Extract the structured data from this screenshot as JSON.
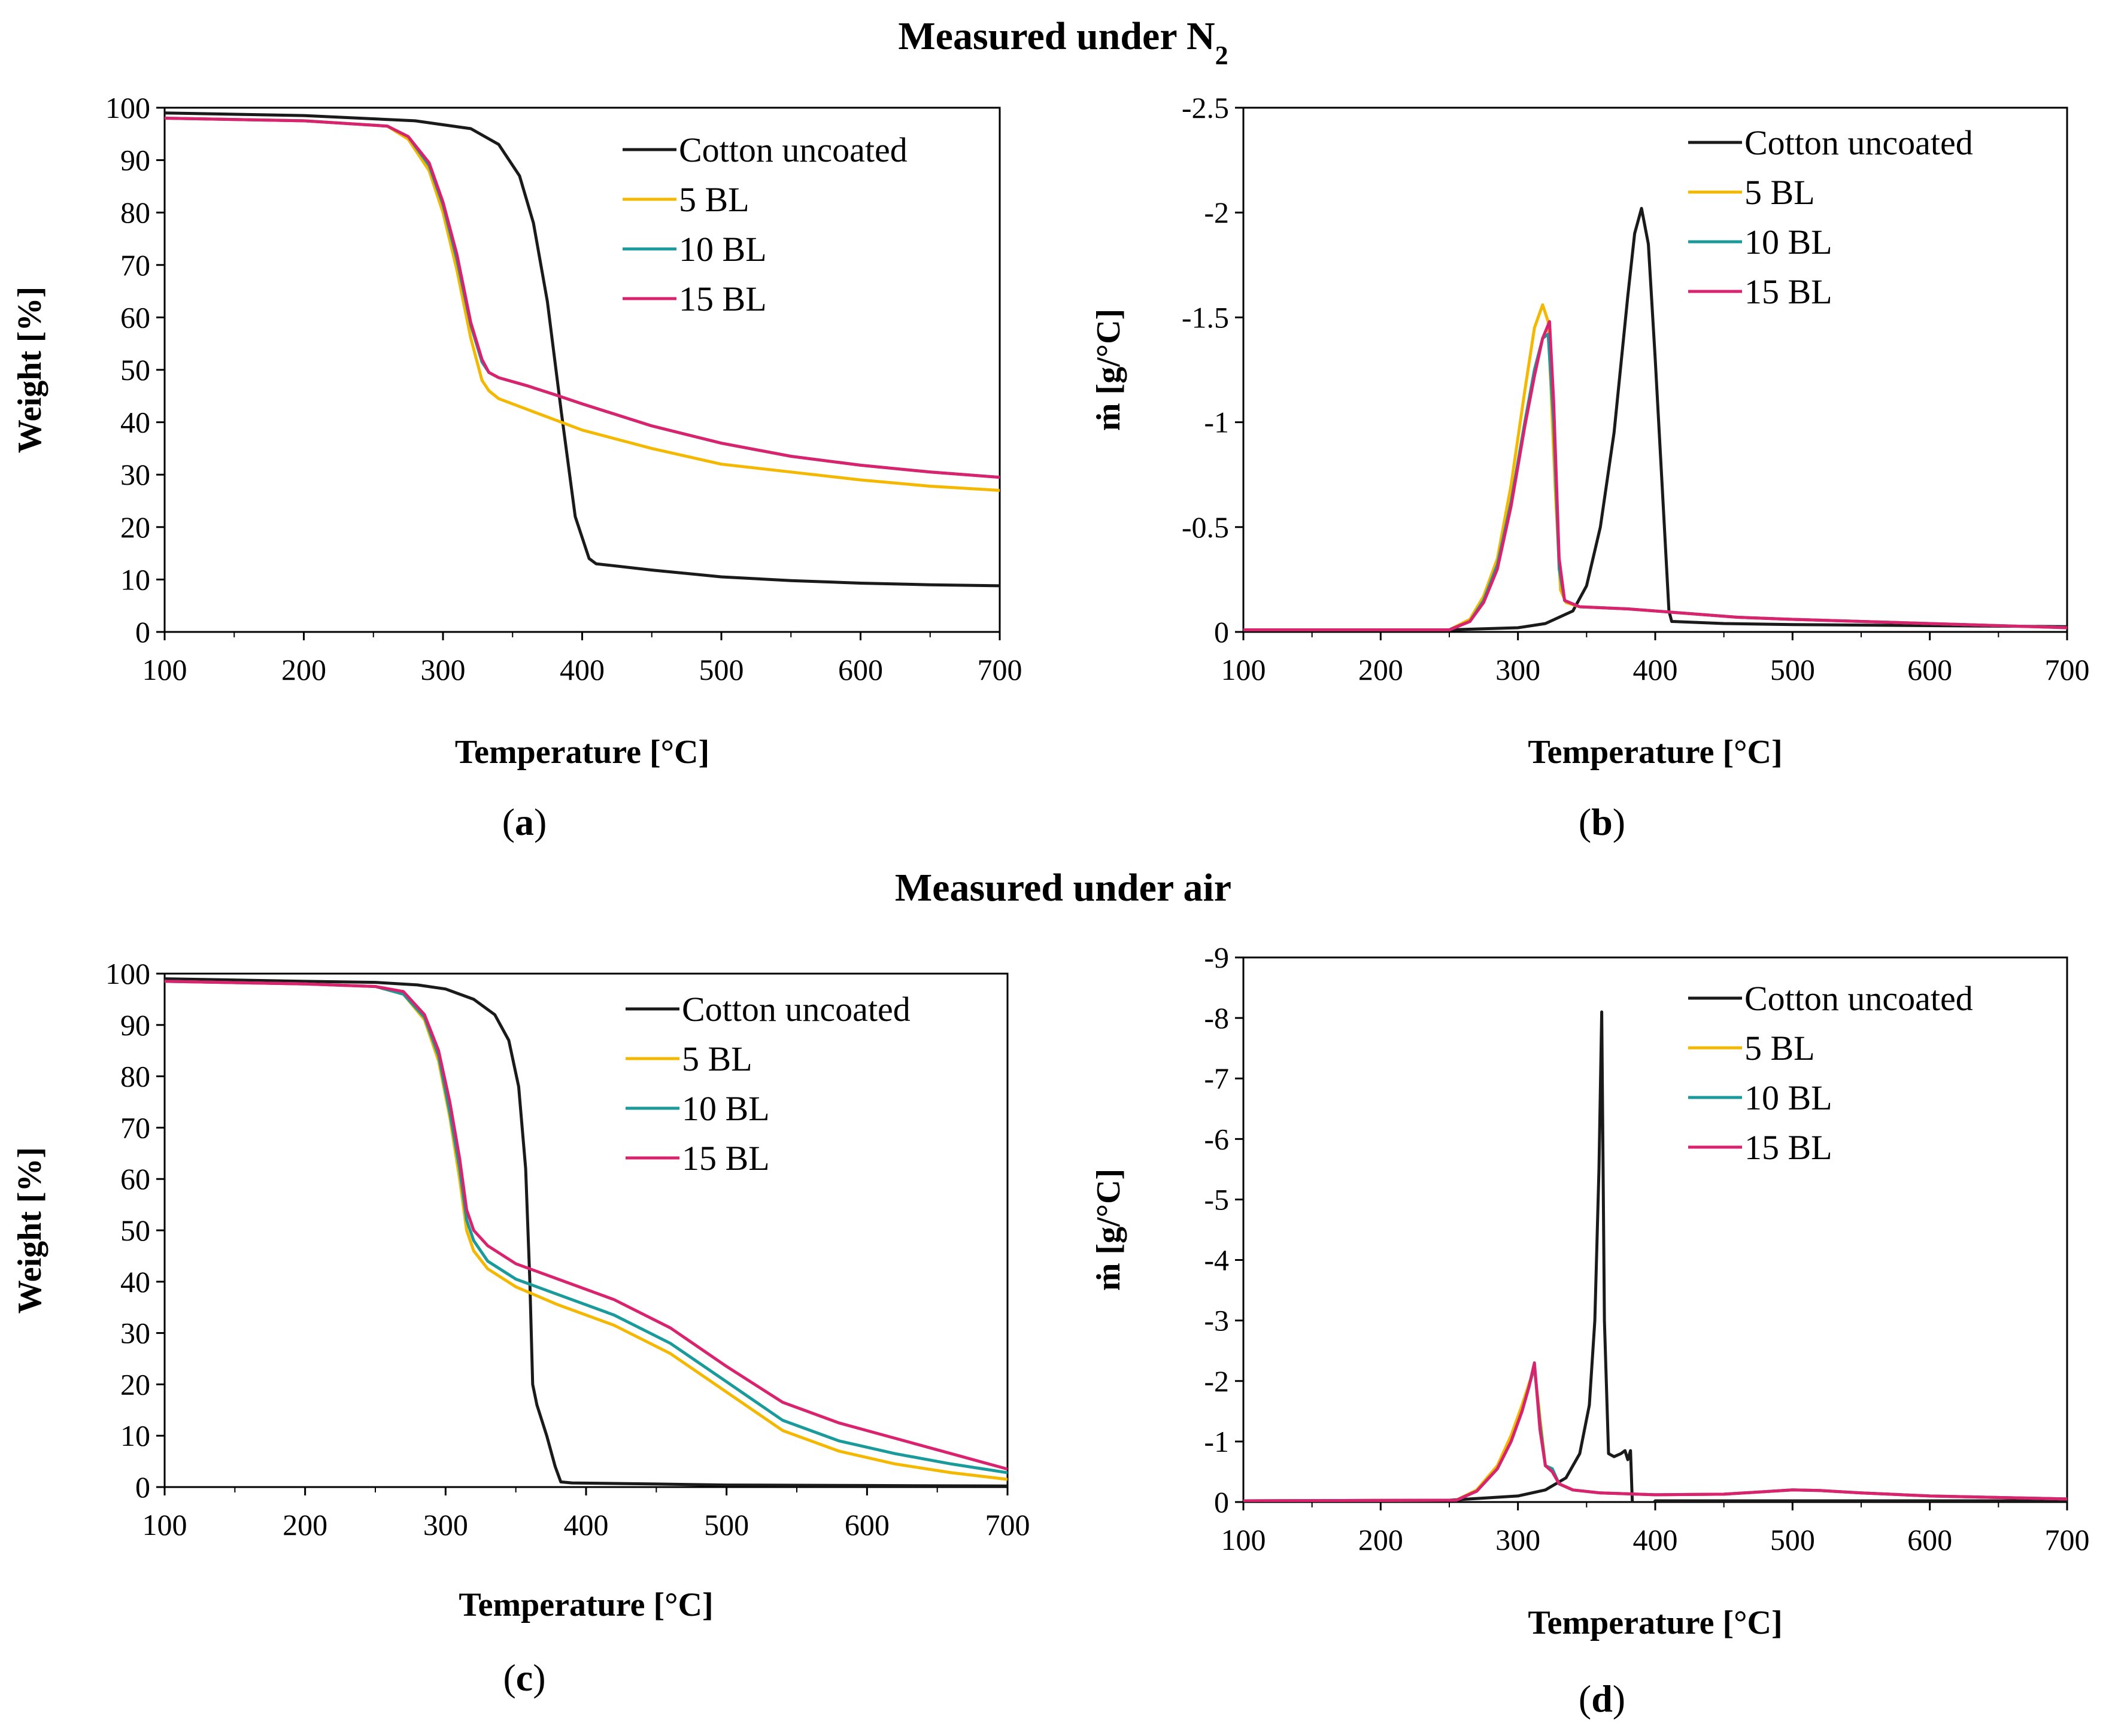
{
  "figure": {
    "section_titles": [
      {
        "main": "Measured under N",
        "sub": "2"
      },
      {
        "main": "Measured under air",
        "sub": ""
      }
    ],
    "panel_labels": [
      "a",
      "b",
      "c",
      "d"
    ]
  },
  "colors": {
    "Cotton uncoated": "#1a1a1a",
    "5 BL": "#f5b800",
    "10 BL": "#1a9a9a",
    "15 BL": "#d9236e"
  },
  "chart_data": [
    {
      "id": "a",
      "type": "line",
      "title": "",
      "xlabel": "Temperature [°C]",
      "ylabel": "Weight [%]",
      "xlim": [
        100,
        700
      ],
      "ylim": [
        0,
        100
      ],
      "y_inverted": false,
      "xticks": [
        100,
        200,
        300,
        400,
        500,
        600,
        700
      ],
      "yticks": [
        0,
        10,
        20,
        30,
        40,
        50,
        60,
        70,
        80,
        90,
        100
      ],
      "ytick_labels": [
        "0",
        "10",
        "20",
        "30",
        "40",
        "50",
        "60",
        "70",
        "80",
        "90",
        "100"
      ],
      "legend": [
        "Cotton uncoated",
        "5 BL",
        "10 BL",
        "15 BL"
      ],
      "series": [
        {
          "name": "Cotton uncoated",
          "x": [
            100,
            200,
            280,
            320,
            340,
            355,
            365,
            375,
            385,
            395,
            405,
            410,
            420,
            450,
            500,
            550,
            600,
            650,
            700
          ],
          "y": [
            99,
            98.5,
            97.5,
            96,
            93,
            87,
            78,
            63,
            42,
            22,
            14,
            13,
            12.7,
            11.8,
            10.5,
            9.8,
            9.3,
            9.0,
            8.8
          ]
        },
        {
          "name": "5 BL",
          "x": [
            100,
            200,
            260,
            275,
            290,
            300,
            310,
            320,
            328,
            333,
            340,
            360,
            380,
            400,
            450,
            500,
            550,
            600,
            650,
            700
          ],
          "y": [
            98,
            97.5,
            96.5,
            94,
            88,
            80,
            69,
            56,
            48,
            46,
            44.5,
            42.5,
            40.5,
            38.5,
            35,
            32,
            30.5,
            29,
            27.8,
            27
          ]
        },
        {
          "name": "10 BL",
          "x": [
            100,
            200,
            260,
            275,
            290,
            300,
            310,
            320,
            328,
            333,
            340,
            360,
            380,
            400,
            450,
            500,
            550,
            600,
            650,
            700
          ],
          "y": [
            98,
            97.5,
            96.5,
            94.5,
            89,
            81.5,
            71,
            58.5,
            51.5,
            49.5,
            48.5,
            47,
            45.3,
            43.5,
            39.3,
            36,
            33.5,
            31.8,
            30.5,
            29.5
          ]
        },
        {
          "name": "15 BL",
          "x": [
            100,
            200,
            260,
            275,
            290,
            300,
            310,
            320,
            328,
            333,
            340,
            360,
            380,
            400,
            450,
            500,
            550,
            600,
            650,
            700
          ],
          "y": [
            98,
            97.5,
            96.5,
            94.5,
            89.5,
            82,
            72,
            59,
            52,
            49.5,
            48.5,
            47,
            45.3,
            43.5,
            39.3,
            36,
            33.5,
            31.8,
            30.5,
            29.5
          ]
        }
      ]
    },
    {
      "id": "b",
      "type": "line",
      "title": "",
      "xlabel": "Temperature [°C]",
      "ylabel": "ṁ [g/°C]",
      "xlim": [
        100,
        700
      ],
      "ylim": [
        -2.5,
        0
      ],
      "y_inverted": true,
      "xticks": [
        100,
        200,
        300,
        400,
        500,
        600,
        700
      ],
      "yticks": [
        0,
        -0.5,
        -1,
        -1.5,
        -2,
        -2.5
      ],
      "ytick_labels": [
        "0",
        "-0.5",
        "-1",
        "-1.5",
        "-2",
        "-2.5"
      ],
      "legend": [
        "Cotton uncoated",
        "5 BL",
        "10 BL",
        "15 BL"
      ],
      "series": [
        {
          "name": "Cotton uncoated",
          "x": [
            100,
            250,
            300,
            320,
            340,
            350,
            360,
            370,
            380,
            385,
            390,
            395,
            400,
            405,
            410,
            412,
            450,
            500,
            600,
            700
          ],
          "y": [
            -0.01,
            -0.01,
            -0.02,
            -0.04,
            -0.1,
            -0.22,
            -0.5,
            -0.95,
            -1.6,
            -1.9,
            -2.02,
            -1.85,
            -1.3,
            -0.7,
            -0.1,
            -0.05,
            -0.04,
            -0.035,
            -0.03,
            -0.025
          ]
        },
        {
          "name": "5 BL",
          "x": [
            100,
            250,
            265,
            275,
            285,
            295,
            305,
            312,
            318,
            322,
            327,
            331,
            335,
            345,
            380,
            420,
            460,
            500,
            600,
            700
          ],
          "y": [
            -0.01,
            -0.01,
            -0.06,
            -0.17,
            -0.35,
            -0.7,
            -1.15,
            -1.45,
            -1.56,
            -1.48,
            -0.7,
            -0.2,
            -0.14,
            -0.12,
            -0.11,
            -0.09,
            -0.07,
            -0.06,
            -0.04,
            -0.02
          ]
        },
        {
          "name": "10 BL",
          "x": [
            100,
            250,
            265,
            275,
            285,
            295,
            305,
            312,
            318,
            322,
            326,
            330,
            334,
            345,
            380,
            420,
            460,
            500,
            600,
            700
          ],
          "y": [
            -0.01,
            -0.01,
            -0.05,
            -0.15,
            -0.32,
            -0.62,
            -1.0,
            -1.25,
            -1.4,
            -1.42,
            -1.0,
            -0.3,
            -0.15,
            -0.12,
            -0.11,
            -0.09,
            -0.07,
            -0.06,
            -0.04,
            -0.02
          ]
        },
        {
          "name": "15 BL",
          "x": [
            100,
            250,
            265,
            275,
            285,
            295,
            305,
            312,
            318,
            323,
            326,
            330,
            334,
            345,
            380,
            420,
            460,
            500,
            600,
            700
          ],
          "y": [
            -0.01,
            -0.01,
            -0.05,
            -0.14,
            -0.3,
            -0.6,
            -0.98,
            -1.22,
            -1.4,
            -1.48,
            -1.1,
            -0.35,
            -0.15,
            -0.12,
            -0.11,
            -0.09,
            -0.07,
            -0.06,
            -0.04,
            -0.02
          ]
        }
      ]
    },
    {
      "id": "c",
      "type": "line",
      "title": "",
      "xlabel": "Temperature [°C]",
      "ylabel": "Weight [%]",
      "xlim": [
        100,
        700
      ],
      "ylim": [
        0,
        100
      ],
      "y_inverted": false,
      "xticks": [
        100,
        200,
        300,
        400,
        500,
        600,
        700
      ],
      "yticks": [
        0,
        10,
        20,
        30,
        40,
        50,
        60,
        70,
        80,
        90,
        100
      ],
      "ytick_labels": [
        "0",
        "10",
        "20",
        "30",
        "40",
        "50",
        "60",
        "70",
        "80",
        "90",
        "100"
      ],
      "legend": [
        "Cotton uncoated",
        "5 BL",
        "10 BL",
        "15 BL"
      ],
      "series": [
        {
          "name": "Cotton uncoated",
          "x": [
            100,
            200,
            250,
            280,
            300,
            320,
            335,
            345,
            352,
            357,
            360,
            362,
            365,
            372,
            378,
            382,
            390,
            450,
            500,
            600,
            700
          ],
          "y": [
            99,
            98.5,
            98.3,
            97.8,
            97,
            95,
            92,
            87,
            78,
            62,
            40,
            20,
            16,
            10,
            4,
            1,
            0.8,
            0.6,
            0.4,
            0.3,
            0.2
          ]
        },
        {
          "name": "5 BL",
          "x": [
            100,
            200,
            250,
            270,
            285,
            295,
            303,
            310,
            315,
            320,
            330,
            350,
            380,
            420,
            460,
            500,
            540,
            580,
            620,
            660,
            700
          ],
          "y": [
            98.5,
            98,
            97.5,
            96,
            91,
            83,
            72,
            60,
            50,
            46,
            42.5,
            39,
            35.5,
            31.5,
            26,
            18.5,
            11,
            7,
            4.5,
            2.8,
            1.5
          ]
        },
        {
          "name": "10 BL",
          "x": [
            100,
            200,
            250,
            270,
            285,
            295,
            303,
            310,
            315,
            320,
            330,
            350,
            380,
            420,
            460,
            500,
            540,
            580,
            620,
            660,
            700
          ],
          "y": [
            98.5,
            98,
            97.5,
            96,
            91.5,
            84,
            73,
            62,
            52,
            48,
            44,
            40.5,
            37.5,
            33.5,
            28,
            20.5,
            13,
            9,
            6.5,
            4.5,
            2.8
          ]
        },
        {
          "name": "15 BL",
          "x": [
            100,
            200,
            250,
            270,
            285,
            295,
            303,
            310,
            315,
            320,
            330,
            350,
            380,
            420,
            460,
            500,
            540,
            580,
            620,
            660,
            700
          ],
          "y": [
            98.5,
            98,
            97.5,
            96.5,
            92,
            85,
            75,
            64,
            54,
            50,
            47,
            43.5,
            40.5,
            36.5,
            31,
            23.5,
            16.5,
            12.5,
            9.5,
            6.5,
            3.5
          ]
        }
      ]
    },
    {
      "id": "d",
      "type": "line",
      "title": "",
      "xlabel": "Temperature [°C]",
      "ylabel": "ṁ [g/°C]",
      "xlim": [
        100,
        700
      ],
      "ylim": [
        -9,
        0
      ],
      "y_inverted": true,
      "xticks": [
        100,
        200,
        300,
        400,
        500,
        600,
        700
      ],
      "yticks": [
        0,
        -1,
        -2,
        -3,
        -4,
        -5,
        -6,
        -7,
        -8,
        -9
      ],
      "ytick_labels": [
        "0",
        "-1",
        "-2",
        "-3",
        "-4",
        "-5",
        "-6",
        "-7",
        "-8",
        "-9"
      ],
      "legend": [
        "Cotton uncoated",
        "5 BL",
        "10 BL",
        "15 BL"
      ],
      "series": [
        {
          "name": "Cotton uncoated",
          "x": [
            100,
            250,
            300,
            320,
            335,
            345,
            352,
            356,
            359,
            361,
            363,
            366,
            370,
            375,
            378,
            380,
            382,
            383,
            384,
            400,
            500,
            600,
            700
          ],
          "y": [
            -0.02,
            -0.03,
            -0.1,
            -0.2,
            -0.4,
            -0.8,
            -1.6,
            -3,
            -5.5,
            -8.1,
            -3,
            -0.8,
            -0.75,
            -0.8,
            -0.85,
            -0.7,
            -0.85,
            -0.2,
            0.4,
            -0.02,
            -0.02,
            -0.02,
            -0.02
          ]
        },
        {
          "name": "5 BL",
          "x": [
            100,
            255,
            270,
            285,
            295,
            303,
            308,
            312,
            316,
            320,
            325,
            330,
            340,
            360,
            400,
            450,
            500,
            520,
            550,
            600,
            700
          ],
          "y": [
            -0.02,
            -0.03,
            -0.2,
            -0.6,
            -1.1,
            -1.6,
            -1.95,
            -2.2,
            -1.4,
            -0.6,
            -0.5,
            -0.3,
            -0.2,
            -0.15,
            -0.12,
            -0.13,
            -0.2,
            -0.19,
            -0.15,
            -0.1,
            -0.05
          ]
        },
        {
          "name": "10 BL",
          "x": [
            100,
            255,
            270,
            285,
            295,
            303,
            308,
            312,
            316,
            320,
            325,
            330,
            340,
            360,
            400,
            450,
            500,
            520,
            550,
            600,
            700
          ],
          "y": [
            -0.02,
            -0.03,
            -0.18,
            -0.55,
            -1.0,
            -1.5,
            -1.9,
            -2.25,
            -1.3,
            -0.6,
            -0.55,
            -0.3,
            -0.2,
            -0.15,
            -0.12,
            -0.13,
            -0.2,
            -0.19,
            -0.15,
            -0.1,
            -0.05
          ]
        },
        {
          "name": "15 BL",
          "x": [
            100,
            255,
            270,
            285,
            295,
            303,
            308,
            312,
            316,
            320,
            325,
            330,
            340,
            360,
            400,
            450,
            500,
            520,
            550,
            600,
            700
          ],
          "y": [
            -0.02,
            -0.03,
            -0.18,
            -0.55,
            -1.0,
            -1.5,
            -1.9,
            -2.3,
            -1.2,
            -0.6,
            -0.5,
            -0.3,
            -0.2,
            -0.15,
            -0.12,
            -0.13,
            -0.2,
            -0.19,
            -0.15,
            -0.1,
            -0.05
          ]
        }
      ]
    }
  ]
}
